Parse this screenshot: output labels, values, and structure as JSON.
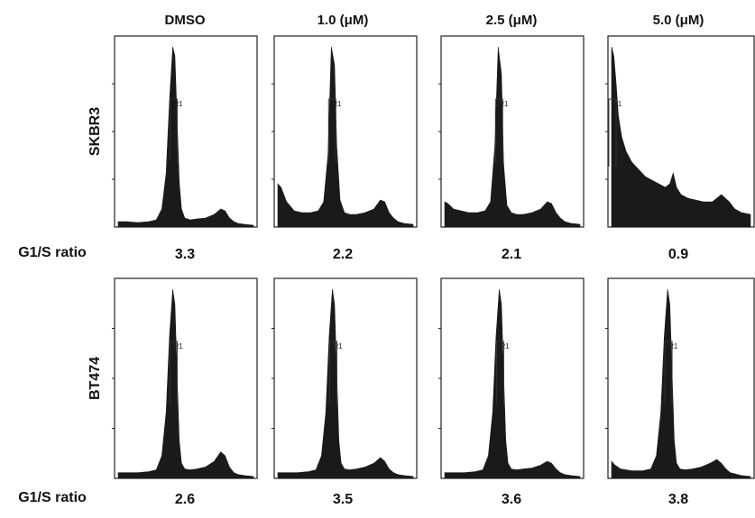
{
  "figure": {
    "columns": [
      "DMSO",
      "1.0 (μM)",
      "2.5 (μM)",
      "5.0 (μM)"
    ],
    "gate_label": "R1",
    "ratio_label": "G1/S ratio",
    "trace_color": "#1a1a1a"
  },
  "chart_data": [
    {
      "type": "area",
      "cell_line": "SKBR3",
      "condition": "DMSO",
      "g1s_ratio": "3.3",
      "x": [
        0,
        8,
        18,
        28,
        35,
        40,
        44,
        47,
        50,
        52,
        54,
        56,
        58,
        61,
        66,
        72,
        80,
        88,
        94,
        98,
        102,
        106,
        110,
        116,
        124
      ],
      "y": [
        3,
        3,
        2.5,
        3,
        4,
        10,
        30,
        70,
        100,
        95,
        60,
        25,
        10,
        5,
        4,
        4.5,
        5,
        7,
        10,
        9,
        5,
        3,
        2,
        1.5,
        1
      ]
    },
    {
      "type": "area",
      "cell_line": "SKBR3",
      "condition": "1.0 (μM)",
      "g1s_ratio": "2.2",
      "x": [
        0,
        3,
        8,
        15,
        22,
        30,
        37,
        42,
        46,
        49,
        52,
        54,
        57,
        61,
        66,
        72,
        80,
        88,
        94,
        98,
        102,
        106,
        110,
        116,
        124
      ],
      "y": [
        24,
        22,
        14,
        9,
        8,
        8,
        9,
        14,
        40,
        100,
        90,
        45,
        15,
        8,
        7,
        7,
        8,
        10,
        15,
        14,
        8,
        5,
        3,
        2,
        1.5
      ]
    },
    {
      "type": "area",
      "cell_line": "SKBR3",
      "condition": "2.5 (μM)",
      "g1s_ratio": "2.1",
      "x": [
        0,
        3,
        8,
        15,
        22,
        30,
        37,
        42,
        46,
        49,
        52,
        54,
        57,
        61,
        66,
        72,
        80,
        88,
        94,
        98,
        102,
        106,
        110,
        116,
        124
      ],
      "y": [
        14,
        13,
        10,
        9,
        8,
        8,
        9,
        14,
        45,
        100,
        85,
        35,
        12,
        8,
        7,
        7,
        8,
        10,
        14,
        13,
        8,
        5,
        3,
        2,
        1.5
      ]
    },
    {
      "type": "area",
      "cell_line": "SKBR3",
      "condition": "5.0 (μM)",
      "g1s_ratio": "0.9",
      "x": [
        0,
        2,
        4,
        6,
        9,
        13,
        18,
        24,
        30,
        36,
        42,
        48,
        52,
        55,
        58,
        62,
        68,
        75,
        82,
        90,
        98,
        105,
        110,
        116,
        124
      ],
      "y": [
        100,
        95,
        80,
        62,
        50,
        42,
        36,
        32,
        28,
        26,
        24,
        22,
        24,
        30,
        22,
        18,
        16,
        15,
        14,
        14,
        18,
        14,
        10,
        8,
        7
      ]
    },
    {
      "type": "area",
      "cell_line": "BT474",
      "condition": "DMSO",
      "g1s_ratio": "2.6",
      "x": [
        0,
        8,
        18,
        28,
        35,
        40,
        44,
        47,
        50,
        52,
        54,
        56,
        58,
        61,
        66,
        72,
        80,
        88,
        94,
        98,
        102,
        106,
        110,
        116,
        124
      ],
      "y": [
        3,
        3,
        3,
        3.5,
        4.5,
        12,
        35,
        75,
        100,
        92,
        55,
        20,
        8,
        5,
        4.5,
        5,
        6,
        9,
        14,
        12,
        6,
        3,
        2,
        1.5,
        1
      ]
    },
    {
      "type": "area",
      "cell_line": "BT474",
      "condition": "1.0 (μM)",
      "g1s_ratio": "3.5",
      "x": [
        0,
        8,
        18,
        28,
        35,
        40,
        44,
        47,
        50,
        52,
        54,
        56,
        58,
        61,
        66,
        72,
        80,
        88,
        94,
        98,
        102,
        106,
        110,
        116,
        124
      ],
      "y": [
        3,
        3,
        3,
        3.5,
        4.5,
        12,
        35,
        75,
        100,
        92,
        55,
        20,
        8,
        5,
        4.5,
        5,
        6,
        8,
        11,
        9,
        5,
        3,
        2,
        1.5,
        1
      ]
    },
    {
      "type": "area",
      "cell_line": "BT474",
      "condition": "2.5 (μM)",
      "g1s_ratio": "3.6",
      "x": [
        0,
        8,
        18,
        28,
        35,
        40,
        44,
        47,
        50,
        52,
        54,
        56,
        58,
        61,
        66,
        72,
        80,
        88,
        94,
        98,
        102,
        106,
        110,
        116,
        124
      ],
      "y": [
        3,
        3,
        3,
        3.5,
        4.5,
        12,
        35,
        75,
        100,
        92,
        55,
        20,
        8,
        5,
        4.5,
        5,
        5.5,
        7,
        9,
        8,
        5,
        3,
        2,
        1.5,
        1
      ]
    },
    {
      "type": "area",
      "cell_line": "BT474",
      "condition": "5.0 (μM)",
      "g1s_ratio": "3.8",
      "x": [
        0,
        3,
        8,
        18,
        28,
        35,
        40,
        44,
        47,
        50,
        52,
        54,
        56,
        58,
        61,
        66,
        72,
        80,
        88,
        94,
        98,
        102,
        106,
        116,
        124
      ],
      "y": [
        9,
        7,
        5,
        4,
        4,
        5,
        12,
        35,
        75,
        100,
        92,
        55,
        20,
        8,
        5,
        4.5,
        5,
        6,
        8,
        10,
        8,
        5,
        3,
        1.5,
        1
      ]
    }
  ]
}
